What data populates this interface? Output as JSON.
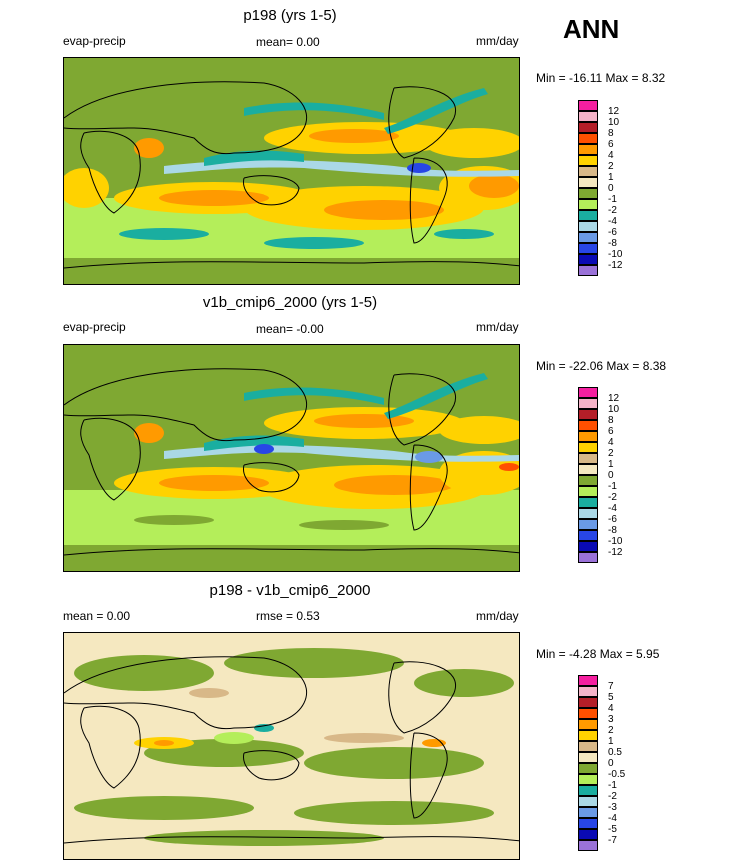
{
  "season_label": "ANN",
  "chart_data": [
    {
      "type": "heatmap",
      "title": "p198 (yrs 1-5)",
      "variable": "evap-precip",
      "mean_text": "mean=  0.00",
      "units": "mm/day",
      "minmax_text": "Min = -16.11 Max =   8.32",
      "levels": [
        "12",
        "10",
        "8",
        "6",
        "4",
        "2",
        "1",
        "0",
        "-1",
        "-2",
        "-4",
        "-6",
        "-8",
        "-10",
        "-12"
      ],
      "colors": [
        "#f51fa0",
        "#f5b3c8",
        "#b41e28",
        "#ff5000",
        "#ff9a00",
        "#ffd200",
        "#d8b888",
        "#f5e8c0",
        "#7fa832",
        "#b4ee5a",
        "#1aaea0",
        "#aad8e6",
        "#6a9ae6",
        "#2846e6",
        "#0a0ab4",
        "#9a72d8"
      ]
    },
    {
      "type": "heatmap",
      "title": "v1b_cmip6_2000 (yrs 1-5)",
      "variable": "evap-precip",
      "mean_text": "mean= -0.00",
      "units": "mm/day",
      "minmax_text": "Min = -22.06 Max =   8.38",
      "levels": [
        "12",
        "10",
        "8",
        "6",
        "4",
        "2",
        "1",
        "0",
        "-1",
        "-2",
        "-4",
        "-6",
        "-8",
        "-10",
        "-12"
      ],
      "colors": [
        "#f51fa0",
        "#f5b3c8",
        "#b41e28",
        "#ff5000",
        "#ff9a00",
        "#ffd200",
        "#d8b888",
        "#f5e8c0",
        "#7fa832",
        "#b4ee5a",
        "#1aaea0",
        "#aad8e6",
        "#6a9ae6",
        "#2846e6",
        "#0a0ab4",
        "#9a72d8"
      ]
    },
    {
      "type": "heatmap",
      "title": "p198 - v1b_cmip6_2000",
      "variable": "",
      "mean_text": "mean =   0.00",
      "rmse_text": "rmse =   0.53",
      "units": "mm/day",
      "minmax_text": "Min =  -4.28 Max =   5.95",
      "levels": [
        "7",
        "5",
        "4",
        "3",
        "2",
        "1",
        "0.5",
        "0",
        "-0.5",
        "-1",
        "-2",
        "-3",
        "-4",
        "-5",
        "-7"
      ],
      "colors": [
        "#f51fa0",
        "#f5b3c8",
        "#b41e28",
        "#ff5000",
        "#ff9a00",
        "#ffd200",
        "#d8b888",
        "#f5e8c0",
        "#7fa832",
        "#b4ee5a",
        "#1aaea0",
        "#aad8e6",
        "#6a9ae6",
        "#2846e6",
        "#0a0ab4",
        "#9a72d8"
      ]
    }
  ]
}
